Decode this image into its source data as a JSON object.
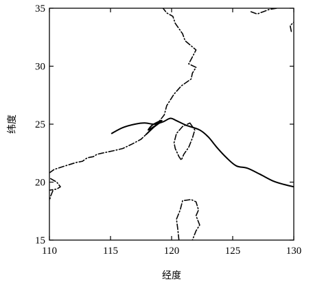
{
  "chart_data": {
    "type": "line",
    "title": "",
    "xlabel": "经度",
    "ylabel": "纬度",
    "xlim": [
      110,
      130
    ],
    "ylim": [
      15,
      35
    ],
    "xticks": [
      110,
      115,
      120,
      125,
      130
    ],
    "yticks": [
      15,
      20,
      25,
      30,
      35
    ],
    "grid": false,
    "series": [
      {
        "role": "typhoon-track",
        "style": "solid",
        "points": [
          [
            115.1,
            24.2
          ],
          [
            116.0,
            24.7
          ],
          [
            117.0,
            25.0
          ],
          [
            117.8,
            25.1
          ],
          [
            118.6,
            25.0
          ],
          [
            119.3,
            25.2
          ],
          [
            119.9,
            25.5
          ],
          [
            120.4,
            25.3
          ],
          [
            121.2,
            24.9
          ],
          [
            122.3,
            24.5
          ],
          [
            123.0,
            23.9
          ],
          [
            123.7,
            23.0
          ],
          [
            124.5,
            22.1
          ],
          [
            125.3,
            21.4
          ],
          [
            126.2,
            21.2
          ],
          [
            127.2,
            20.7
          ],
          [
            128.3,
            20.1
          ],
          [
            129.2,
            19.8
          ],
          [
            130.0,
            19.6
          ]
        ],
        "loop_points": [
          [
            117.9,
            24.1
          ],
          [
            118.4,
            24.6
          ],
          [
            118.9,
            25.1
          ],
          [
            119.2,
            25.3
          ],
          [
            118.9,
            25.2
          ],
          [
            118.4,
            24.9
          ],
          [
            118.1,
            24.5
          ],
          [
            118.7,
            24.9
          ],
          [
            119.0,
            25.1
          ],
          [
            118.5,
            24.7
          ],
          [
            118.0,
            24.2
          ]
        ]
      },
      {
        "role": "coastline-mainland",
        "style": "dash-dot",
        "points": [
          [
            110.0,
            20.8
          ],
          [
            110.4,
            21.1
          ],
          [
            111.3,
            21.4
          ],
          [
            112.2,
            21.7
          ],
          [
            112.7,
            21.8
          ],
          [
            113.1,
            22.1
          ],
          [
            113.6,
            22.2
          ],
          [
            113.9,
            22.4
          ],
          [
            114.3,
            22.5
          ],
          [
            115.2,
            22.7
          ],
          [
            116.0,
            22.9
          ],
          [
            116.8,
            23.3
          ],
          [
            117.5,
            23.7
          ],
          [
            118.2,
            24.4
          ],
          [
            118.8,
            25.0
          ],
          [
            119.4,
            25.8
          ],
          [
            119.6,
            26.6
          ],
          [
            120.2,
            27.6
          ],
          [
            120.8,
            28.3
          ],
          [
            121.6,
            28.9
          ],
          [
            121.7,
            29.4
          ],
          [
            122.0,
            29.9
          ],
          [
            121.4,
            30.2
          ],
          [
            121.7,
            30.8
          ],
          [
            122.0,
            31.4
          ],
          [
            121.1,
            32.2
          ],
          [
            120.9,
            32.8
          ],
          [
            120.3,
            33.7
          ],
          [
            120.1,
            34.3
          ],
          [
            119.6,
            34.6
          ],
          [
            119.3,
            35.0
          ]
        ]
      },
      {
        "role": "coastline-taiwan",
        "style": "dash-dot",
        "points": [
          [
            121.5,
            25.1
          ],
          [
            121.9,
            24.5
          ],
          [
            121.7,
            23.8
          ],
          [
            121.4,
            23.0
          ],
          [
            121.0,
            22.4
          ],
          [
            120.8,
            21.9
          ],
          [
            120.6,
            22.2
          ],
          [
            120.3,
            22.9
          ],
          [
            120.2,
            23.4
          ],
          [
            120.4,
            24.2
          ],
          [
            120.9,
            24.8
          ],
          [
            121.5,
            25.1
          ]
        ]
      },
      {
        "role": "coastline-hainan",
        "style": "dash-dot",
        "points": [
          [
            110.1,
            20.3
          ],
          [
            110.6,
            20.0
          ],
          [
            110.9,
            19.6
          ],
          [
            110.6,
            19.4
          ],
          [
            110.0,
            19.3
          ],
          [
            109.7,
            18.7
          ],
          [
            110.0,
            18.4
          ],
          [
            110.1,
            18.8
          ],
          [
            110.3,
            19.3
          ]
        ]
      },
      {
        "role": "coastline-luzon",
        "style": "dash-dot",
        "points": [
          [
            120.6,
            15.0
          ],
          [
            120.5,
            16.0
          ],
          [
            120.4,
            16.8
          ],
          [
            120.7,
            17.6
          ],
          [
            120.9,
            18.4
          ],
          [
            121.6,
            18.5
          ],
          [
            122.0,
            18.3
          ],
          [
            122.2,
            17.6
          ],
          [
            122.0,
            17.1
          ],
          [
            122.3,
            16.3
          ],
          [
            122.0,
            15.8
          ],
          [
            121.7,
            15.0
          ]
        ]
      },
      {
        "role": "coastline-korea",
        "style": "dash-dot",
        "points": [
          [
            126.5,
            34.7
          ],
          [
            127.0,
            34.5
          ],
          [
            127.5,
            34.7
          ],
          [
            128.0,
            34.9
          ],
          [
            128.6,
            35.0
          ]
        ]
      },
      {
        "role": "coastline-japan",
        "style": "dash-dot",
        "points": [
          [
            129.8,
            33.0
          ],
          [
            129.7,
            33.5
          ],
          [
            130.0,
            33.8
          ]
        ]
      }
    ]
  }
}
